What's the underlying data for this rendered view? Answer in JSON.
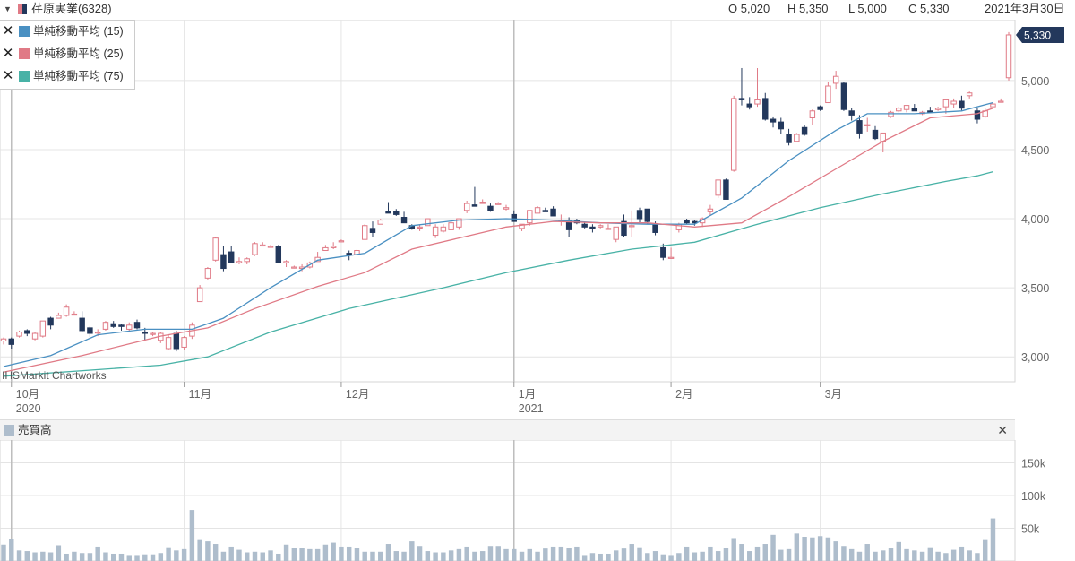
{
  "header": {
    "title": "荏原実業(6328)",
    "open": "O 5,020",
    "high": "H 5,350",
    "low": "L 5,000",
    "close": "C 5,330",
    "date": "2021年3月30日"
  },
  "legend": [
    {
      "label": "単純移動平均 (15)",
      "color": "#4a90c2"
    },
    {
      "label": "単純移動平均 (25)",
      "color": "#e07a86"
    },
    {
      "label": "単純移動平均 (75)",
      "color": "#48b2a6"
    }
  ],
  "watermark": "IHSMarkit Chartworks",
  "current_price_label": "5,330",
  "volume_panel": {
    "title": "売買高",
    "color": "#aebdcc"
  },
  "colors": {
    "up": "#e07a86",
    "down": "#23385c",
    "grid": "#e4e4e4",
    "axis_label": "#666"
  },
  "chart_data": [
    {
      "type": "candlestick",
      "title": "荏原実業(6328)",
      "yticks": [
        3000,
        3500,
        4000,
        4500,
        5000
      ],
      "ytick_labels": [
        "3,000",
        "3,500",
        "4,000",
        "4,500",
        "5,000"
      ],
      "ylim": [
        2820,
        5440
      ],
      "xticks": [
        {
          "index": 1,
          "label": "10月",
          "sub": "2020"
        },
        {
          "index": 23,
          "label": "11月",
          "sub": ""
        },
        {
          "index": 43,
          "label": "12月",
          "sub": ""
        },
        {
          "index": 65,
          "label": "1月",
          "sub": "2021"
        },
        {
          "index": 85,
          "label": "2月",
          "sub": ""
        },
        {
          "index": 104,
          "label": "3月",
          "sub": ""
        }
      ],
      "candles": [
        [
          3115,
          3140,
          3090,
          3130
        ],
        [
          3130,
          3140,
          3060,
          3090
        ],
        [
          3150,
          3190,
          3140,
          3180
        ],
        [
          3190,
          3200,
          3150,
          3170
        ],
        [
          3130,
          3180,
          3120,
          3170
        ],
        [
          3150,
          3260,
          3140,
          3260
        ],
        [
          3280,
          3290,
          3200,
          3230
        ],
        [
          3280,
          3320,
          3280,
          3300
        ],
        [
          3300,
          3380,
          3290,
          3360
        ],
        [
          3310,
          3330,
          3300,
          3310
        ],
        [
          3280,
          3330,
          3180,
          3190
        ],
        [
          3210,
          3220,
          3140,
          3170
        ],
        [
          3180,
          3200,
          3150,
          3180
        ],
        [
          3200,
          3260,
          3190,
          3250
        ],
        [
          3240,
          3260,
          3210,
          3220
        ],
        [
          3230,
          3240,
          3190,
          3220
        ],
        [
          3200,
          3250,
          3180,
          3230
        ],
        [
          3250,
          3270,
          3200,
          3210
        ],
        [
          3180,
          3210,
          3120,
          3170
        ],
        [
          3170,
          3180,
          3150,
          3170
        ],
        [
          3120,
          3180,
          3100,
          3170
        ],
        [
          3060,
          3160,
          3050,
          3140
        ],
        [
          3170,
          3190,
          3040,
          3060
        ],
        [
          3070,
          3150,
          3050,
          3140
        ],
        [
          3150,
          3250,
          3130,
          3230
        ],
        [
          3400,
          3520,
          3400,
          3500
        ],
        [
          3570,
          3650,
          3560,
          3640
        ],
        [
          3700,
          3870,
          3690,
          3860
        ],
        [
          3740,
          3800,
          3620,
          3640
        ],
        [
          3760,
          3800,
          3680,
          3680
        ],
        [
          3680,
          3720,
          3670,
          3690
        ],
        [
          3690,
          3720,
          3670,
          3710
        ],
        [
          3740,
          3830,
          3730,
          3820
        ],
        [
          3810,
          3830,
          3810,
          3810
        ],
        [
          3800,
          3810,
          3790,
          3800
        ],
        [
          3800,
          3810,
          3680,
          3680
        ],
        [
          3680,
          3700,
          3650,
          3690
        ],
        [
          3650,
          3660,
          3640,
          3650
        ],
        [
          3640,
          3670,
          3620,
          3650
        ],
        [
          3650,
          3690,
          3640,
          3680
        ],
        [
          3690,
          3760,
          3690,
          3720
        ],
        [
          3770,
          3810,
          3770,
          3790
        ],
        [
          3790,
          3830,
          3780,
          3800
        ],
        [
          3840,
          3850,
          3830,
          3840
        ],
        [
          3750,
          3770,
          3700,
          3740
        ],
        [
          3740,
          3780,
          3740,
          3770
        ],
        [
          3850,
          3960,
          3850,
          3950
        ],
        [
          3930,
          3980,
          3870,
          3900
        ],
        [
          3960,
          4000,
          3960,
          3990
        ],
        [
          4050,
          4120,
          4040,
          4040
        ],
        [
          4050,
          4070,
          4020,
          4030
        ],
        [
          4010,
          4050,
          3990,
          3970
        ],
        [
          3950,
          3960,
          3920,
          3930
        ],
        [
          3940,
          3960,
          3910,
          3940
        ],
        [
          3950,
          4000,
          3950,
          4000
        ],
        [
          3880,
          3960,
          3860,
          3940
        ],
        [
          3910,
          3960,
          3900,
          3940
        ],
        [
          3920,
          3990,
          3920,
          3970
        ],
        [
          3940,
          4000,
          3920,
          4000
        ],
        [
          4060,
          4130,
          4040,
          4110
        ],
        [
          4100,
          4230,
          4090,
          4090
        ],
        [
          4110,
          4140,
          4110,
          4120
        ],
        [
          4090,
          4110,
          4050,
          4060
        ],
        [
          4110,
          4120,
          4110,
          4110
        ],
        [
          4070,
          4100,
          4060,
          4080
        ],
        [
          4030,
          4060,
          3980,
          3980
        ],
        [
          3930,
          3960,
          3910,
          3960
        ],
        [
          3970,
          4060,
          3950,
          4060
        ],
        [
          4040,
          4090,
          4040,
          4080
        ],
        [
          4060,
          4080,
          4050,
          4050
        ],
        [
          4070,
          4090,
          4020,
          4020
        ],
        [
          3990,
          4030,
          3950,
          3990
        ],
        [
          3990,
          4010,
          3870,
          3920
        ],
        [
          3990,
          4000,
          3960,
          3970
        ],
        [
          3960,
          3980,
          3930,
          3940
        ],
        [
          3940,
          3960,
          3900,
          3930
        ],
        [
          3940,
          3960,
          3930,
          3950
        ],
        [
          3930,
          3960,
          3930,
          3930
        ],
        [
          3850,
          3940,
          3830,
          3940
        ],
        [
          3980,
          4030,
          3870,
          3880
        ],
        [
          3950,
          4060,
          3870,
          3950
        ],
        [
          4060,
          4080,
          3970,
          4000
        ],
        [
          4070,
          4070,
          3960,
          3980
        ],
        [
          3960,
          3980,
          3880,
          3900
        ],
        [
          3790,
          3820,
          3700,
          3720
        ],
        [
          3720,
          3790,
          3710,
          3720
        ],
        [
          3920,
          3970,
          3900,
          3960
        ],
        [
          3990,
          4000,
          3960,
          3970
        ],
        [
          3980,
          3990,
          3950,
          3970
        ],
        [
          3970,
          4010,
          3940,
          4000
        ],
        [
          4050,
          4100,
          4020,
          4070
        ],
        [
          4170,
          4280,
          4150,
          4280
        ],
        [
          4280,
          4290,
          4140,
          4140
        ],
        [
          4350,
          4890,
          4340,
          4870
        ],
        [
          4870,
          5090,
          4820,
          4860
        ],
        [
          4830,
          4880,
          4790,
          4810
        ],
        [
          4830,
          5090,
          4810,
          4860
        ],
        [
          4870,
          4910,
          4710,
          4720
        ],
        [
          4720,
          4740,
          4660,
          4700
        ],
        [
          4700,
          4730,
          4610,
          4650
        ],
        [
          4610,
          4650,
          4530,
          4550
        ],
        [
          4560,
          4620,
          4560,
          4610
        ],
        [
          4660,
          4680,
          4600,
          4610
        ],
        [
          4730,
          4790,
          4680,
          4780
        ],
        [
          4810,
          4820,
          4780,
          4790
        ],
        [
          4840,
          4990,
          4840,
          4960
        ],
        [
          4980,
          5070,
          4940,
          5030
        ],
        [
          4980,
          4990,
          4780,
          4790
        ],
        [
          4780,
          4800,
          4710,
          4750
        ],
        [
          4710,
          4750,
          4580,
          4620
        ],
        [
          4680,
          4730,
          4630,
          4680
        ],
        [
          4640,
          4670,
          4570,
          4580
        ],
        [
          4560,
          4610,
          4480,
          4620
        ],
        [
          4740,
          4780,
          4730,
          4770
        ],
        [
          4780,
          4810,
          4770,
          4800
        ],
        [
          4790,
          4820,
          4770,
          4820
        ],
        [
          4800,
          4830,
          4790,
          4780
        ],
        [
          4760,
          4780,
          4750,
          4770
        ],
        [
          4780,
          4810,
          4770,
          4770
        ],
        [
          4790,
          4810,
          4780,
          4800
        ],
        [
          4810,
          4860,
          4760,
          4860
        ],
        [
          4830,
          4870,
          4800,
          4850
        ],
        [
          4850,
          4890,
          4780,
          4800
        ],
        [
          4890,
          4920,
          4870,
          4910
        ],
        [
          4780,
          4800,
          4690,
          4720
        ],
        [
          4740,
          4800,
          4730,
          4780
        ],
        [
          4810,
          4840,
          4800,
          4830
        ],
        [
          4850,
          4870,
          4840,
          4850
        ],
        [
          5020,
          5350,
          5000,
          5330
        ]
      ],
      "series": [
        {
          "name": "単純移動平均 (15)",
          "color": "#4a90c2",
          "points": [
            [
              0,
              2930
            ],
            [
              6,
              3010
            ],
            [
              12,
              3160
            ],
            [
              18,
              3200
            ],
            [
              24,
              3200
            ],
            [
              28,
              3280
            ],
            [
              34,
              3500
            ],
            [
              40,
              3700
            ],
            [
              46,
              3750
            ],
            [
              52,
              3950
            ],
            [
              58,
              3990
            ],
            [
              64,
              4000
            ],
            [
              70,
              3990
            ],
            [
              76,
              3970
            ],
            [
              82,
              3960
            ],
            [
              88,
              3960
            ],
            [
              94,
              4150
            ],
            [
              100,
              4420
            ],
            [
              106,
              4640
            ],
            [
              110,
              4760
            ],
            [
              116,
              4760
            ],
            [
              122,
              4780
            ],
            [
              126,
              4840
            ]
          ]
        },
        {
          "name": "単純移動平均 (25)",
          "color": "#e07a86",
          "points": [
            [
              0,
              2890
            ],
            [
              10,
              3010
            ],
            [
              20,
              3150
            ],
            [
              26,
              3210
            ],
            [
              32,
              3350
            ],
            [
              40,
              3510
            ],
            [
              46,
              3610
            ],
            [
              52,
              3780
            ],
            [
              58,
              3860
            ],
            [
              64,
              3940
            ],
            [
              70,
              3980
            ],
            [
              76,
              3970
            ],
            [
              82,
              3970
            ],
            [
              88,
              3940
            ],
            [
              94,
              3970
            ],
            [
              100,
              4160
            ],
            [
              106,
              4360
            ],
            [
              112,
              4560
            ],
            [
              118,
              4730
            ],
            [
              124,
              4760
            ],
            [
              126,
              4800
            ]
          ]
        },
        {
          "name": "単純移動平均 (75)",
          "color": "#48b2a6",
          "points": [
            [
              0,
              2860
            ],
            [
              20,
              2940
            ],
            [
              26,
              3000
            ],
            [
              34,
              3180
            ],
            [
              44,
              3350
            ],
            [
              56,
              3500
            ],
            [
              64,
              3610
            ],
            [
              72,
              3700
            ],
            [
              80,
              3780
            ],
            [
              88,
              3830
            ],
            [
              96,
              3960
            ],
            [
              104,
              4080
            ],
            [
              112,
              4180
            ],
            [
              120,
              4270
            ],
            [
              124,
              4310
            ],
            [
              126,
              4340
            ]
          ]
        }
      ]
    },
    {
      "type": "bar",
      "title": "売買高",
      "yticks": [
        50000,
        100000,
        150000
      ],
      "ytick_labels": [
        "50k",
        "100k",
        "150k"
      ],
      "ylim": [
        0,
        185000
      ],
      "values": [
        25000,
        34000,
        16000,
        15000,
        13000,
        14000,
        13000,
        24000,
        11000,
        14000,
        12000,
        12000,
        22000,
        13000,
        11000,
        11000,
        9000,
        9000,
        10000,
        10000,
        12000,
        21000,
        16000,
        18000,
        78000,
        32000,
        30000,
        26000,
        14000,
        22000,
        17000,
        13000,
        14000,
        13000,
        16000,
        11000,
        25000,
        20000,
        20000,
        18000,
        18000,
        25000,
        28000,
        22000,
        22000,
        20000,
        14000,
        14000,
        14000,
        26000,
        15000,
        14000,
        30000,
        23000,
        15000,
        13000,
        13000,
        16000,
        18000,
        22000,
        14000,
        15000,
        23000,
        23000,
        18000,
        18000,
        14000,
        18000,
        14000,
        19000,
        22000,
        22000,
        20000,
        22000,
        9000,
        12000,
        11000,
        11000,
        16000,
        19000,
        26000,
        21000,
        12000,
        15000,
        10000,
        9000,
        12000,
        22000,
        13000,
        14000,
        22000,
        15000,
        20000,
        35000,
        26000,
        15000,
        22000,
        26000,
        40000,
        17000,
        18000,
        42000,
        37000,
        36000,
        38000,
        36000,
        30000,
        23000,
        18000,
        14000,
        26000,
        14000,
        16000,
        20000,
        29000,
        18000,
        16000,
        14000,
        21000,
        14000,
        12000,
        17000,
        22000,
        16000,
        12000,
        32000,
        65000
      ]
    }
  ]
}
